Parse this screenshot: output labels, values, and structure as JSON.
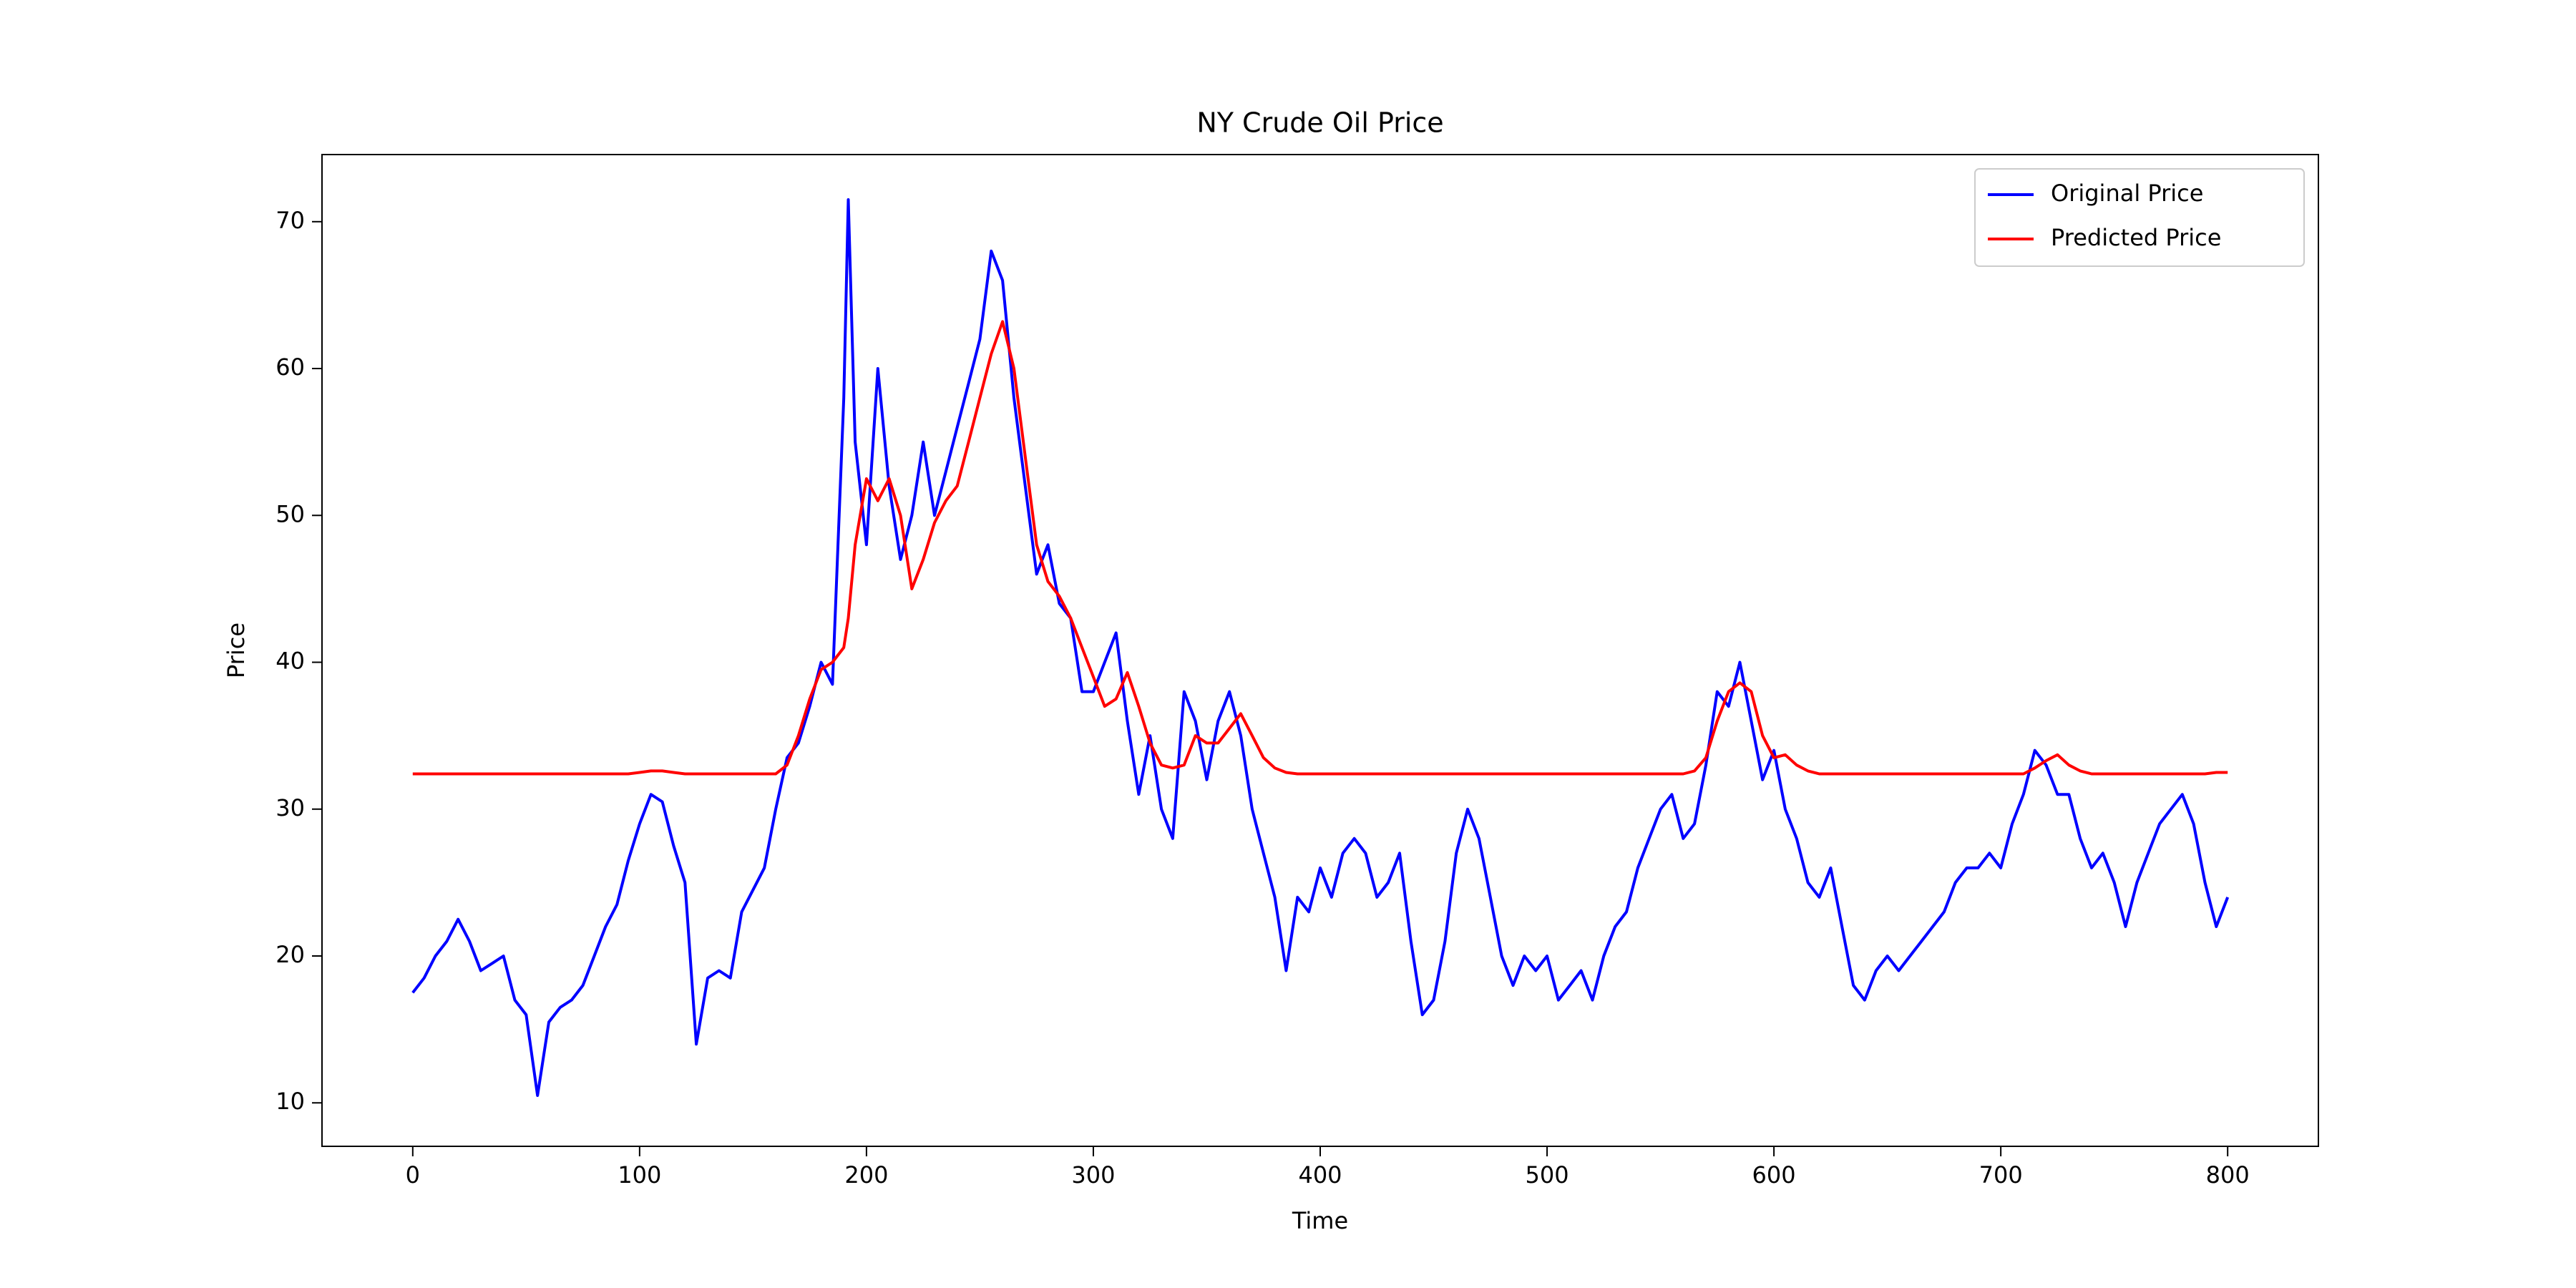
{
  "chart_data": {
    "type": "line",
    "title": "NY Crude Oil Price",
    "x_label": "Time",
    "y_label": "Price",
    "x": [
      0,
      5,
      10,
      15,
      20,
      25,
      30,
      35,
      40,
      45,
      50,
      55,
      60,
      65,
      70,
      75,
      80,
      85,
      90,
      95,
      100,
      105,
      110,
      115,
      120,
      125,
      130,
      135,
      140,
      145,
      150,
      155,
      160,
      165,
      170,
      175,
      180,
      185,
      190,
      192,
      195,
      200,
      205,
      210,
      215,
      220,
      225,
      230,
      235,
      240,
      245,
      250,
      255,
      260,
      265,
      270,
      275,
      280,
      285,
      290,
      295,
      300,
      305,
      310,
      315,
      320,
      325,
      330,
      335,
      340,
      345,
      350,
      355,
      360,
      365,
      370,
      375,
      380,
      385,
      390,
      395,
      400,
      405,
      410,
      415,
      420,
      425,
      430,
      435,
      440,
      445,
      450,
      455,
      460,
      465,
      470,
      475,
      480,
      485,
      490,
      495,
      500,
      505,
      510,
      515,
      520,
      525,
      530,
      535,
      540,
      545,
      550,
      555,
      560,
      565,
      570,
      575,
      580,
      585,
      590,
      595,
      600,
      605,
      610,
      615,
      620,
      625,
      630,
      635,
      640,
      645,
      650,
      655,
      660,
      665,
      670,
      675,
      680,
      685,
      690,
      695,
      700,
      705,
      710,
      715,
      720,
      725,
      730,
      735,
      740,
      745,
      750,
      755,
      760,
      765,
      770,
      775,
      780,
      785,
      790,
      795,
      800
    ],
    "series": [
      {
        "name": "Original Price",
        "color": "#0000ff",
        "values": [
          17.5,
          18.5,
          20,
          21,
          22.5,
          21,
          19,
          19.5,
          20,
          17,
          16,
          10.5,
          15.5,
          16.5,
          17,
          18,
          20,
          22,
          23.5,
          26.5,
          29,
          31,
          30.5,
          27.5,
          25,
          14,
          18.5,
          19,
          18.5,
          23,
          24.5,
          26,
          30,
          33.5,
          34.5,
          37,
          40,
          38.5,
          58,
          71.5,
          55,
          48,
          60,
          52,
          47,
          50,
          55,
          50,
          53,
          56,
          59,
          62,
          68,
          66,
          58,
          52,
          46,
          48,
          44,
          43,
          38,
          38,
          40,
          42,
          36,
          31,
          35,
          30,
          28,
          38,
          36,
          32,
          36,
          38,
          35,
          30,
          27,
          24,
          19,
          24,
          23,
          26,
          24,
          27,
          28,
          27,
          24,
          25,
          27,
          21,
          16,
          17,
          21,
          27,
          30,
          28,
          24,
          20,
          18,
          20,
          19,
          20,
          17,
          18,
          19,
          17,
          20,
          22,
          23,
          26,
          28,
          30,
          31,
          28,
          29,
          33,
          38,
          37,
          40,
          36,
          32,
          34,
          30,
          28,
          25,
          24,
          26,
          22,
          18,
          17,
          19,
          20,
          19,
          20,
          21,
          22,
          23,
          25,
          26,
          26,
          27,
          26,
          29,
          31,
          34,
          33,
          31,
          31,
          28,
          26,
          27,
          25,
          22,
          25,
          27,
          29,
          30,
          31,
          29,
          25,
          22,
          24
        ]
      },
      {
        "name": "Predicted Price",
        "color": "#ff0000",
        "values": [
          32.4,
          32.4,
          32.4,
          32.4,
          32.4,
          32.4,
          32.4,
          32.4,
          32.4,
          32.4,
          32.4,
          32.4,
          32.4,
          32.4,
          32.4,
          32.4,
          32.4,
          32.4,
          32.4,
          32.4,
          32.5,
          32.6,
          32.6,
          32.5,
          32.4,
          32.4,
          32.4,
          32.4,
          32.4,
          32.4,
          32.4,
          32.4,
          32.4,
          33,
          35,
          37.5,
          39.5,
          40,
          41,
          43,
          48,
          52.5,
          51,
          52.5,
          50,
          45,
          47,
          49.5,
          51,
          52,
          55,
          58,
          61,
          63.2,
          60,
          54,
          48,
          45.5,
          44.5,
          43,
          41,
          39,
          37,
          37.5,
          39.3,
          37,
          34.5,
          33,
          32.8,
          33,
          35,
          34.5,
          34.5,
          35.5,
          36.5,
          35,
          33.5,
          32.8,
          32.5,
          32.4,
          32.4,
          32.4,
          32.4,
          32.4,
          32.4,
          32.4,
          32.4,
          32.4,
          32.4,
          32.4,
          32.4,
          32.4,
          32.4,
          32.4,
          32.4,
          32.4,
          32.4,
          32.4,
          32.4,
          32.4,
          32.4,
          32.4,
          32.4,
          32.4,
          32.4,
          32.4,
          32.4,
          32.4,
          32.4,
          32.4,
          32.4,
          32.4,
          32.4,
          32.4,
          32.6,
          33.5,
          36,
          38,
          38.6,
          38,
          35,
          33.5,
          33.7,
          33,
          32.6,
          32.4,
          32.4,
          32.4,
          32.4,
          32.4,
          32.4,
          32.4,
          32.4,
          32.4,
          32.4,
          32.4,
          32.4,
          32.4,
          32.4,
          32.4,
          32.4,
          32.4,
          32.4,
          32.4,
          32.8,
          33.3,
          33.7,
          33,
          32.6,
          32.4,
          32.4,
          32.4,
          32.4,
          32.4,
          32.4,
          32.4,
          32.4,
          32.4,
          32.4,
          32.4,
          32.5,
          32.5
        ]
      }
    ],
    "xlim": [
      -40,
      840
    ],
    "ylim": [
      7.04,
      74.57
    ],
    "xticks": [
      0,
      100,
      200,
      300,
      400,
      500,
      600,
      700,
      800
    ],
    "yticks": [
      10,
      20,
      30,
      40,
      50,
      60,
      70
    ],
    "legend": "upper right"
  }
}
